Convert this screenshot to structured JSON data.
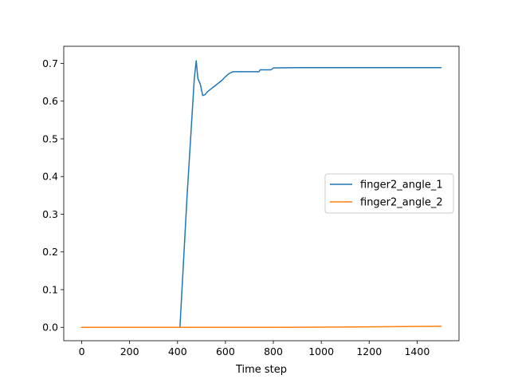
{
  "chart_data": {
    "type": "line",
    "title": "",
    "xlabel": "Time step",
    "ylabel": "",
    "xlim": [
      -75,
      1575
    ],
    "ylim": [
      -0.0355,
      0.7455
    ],
    "x_ticks": [
      0,
      200,
      400,
      600,
      800,
      1000,
      1200,
      1400
    ],
    "x_tick_labels": [
      "0",
      "200",
      "400",
      "600",
      "800",
      "1000",
      "1200",
      "1400"
    ],
    "y_ticks": [
      0.0,
      0.1,
      0.2,
      0.3,
      0.4,
      0.5,
      0.6,
      0.7
    ],
    "y_tick_labels": [
      "0.0",
      "0.1",
      "0.2",
      "0.3",
      "0.4",
      "0.5",
      "0.6",
      "0.7"
    ],
    "grid": false,
    "legend_position": "center-right",
    "series": [
      {
        "name": "finger2_angle_1",
        "color": "#1f77b4",
        "x": [
          0,
          100,
          200,
          300,
          400,
          410,
          440,
          470,
          478,
          485,
          495,
          505,
          515,
          525,
          535,
          545,
          555,
          565,
          575,
          585,
          600,
          615,
          630,
          660,
          700,
          740,
          745,
          760,
          790,
          800,
          900,
          1000,
          1100,
          1200,
          1300,
          1400,
          1500
        ],
        "y": [
          0.0,
          0.0,
          0.0,
          0.0,
          0.0,
          0.0,
          0.35,
          0.66,
          0.707,
          0.66,
          0.645,
          0.615,
          0.617,
          0.625,
          0.63,
          0.635,
          0.64,
          0.645,
          0.65,
          0.655,
          0.665,
          0.673,
          0.678,
          0.678,
          0.678,
          0.678,
          0.683,
          0.683,
          0.683,
          0.688,
          0.689,
          0.689,
          0.689,
          0.689,
          0.689,
          0.689,
          0.689
        ]
      },
      {
        "name": "finger2_angle_2",
        "color": "#ff7f0e",
        "x": [
          0,
          200,
          400,
          600,
          800,
          1000,
          1200,
          1300,
          1400,
          1500
        ],
        "y": [
          0.0,
          0.0,
          0.0,
          0.0,
          0.0,
          0.0005,
          0.0012,
          0.0018,
          0.0023,
          0.0028
        ]
      }
    ]
  }
}
